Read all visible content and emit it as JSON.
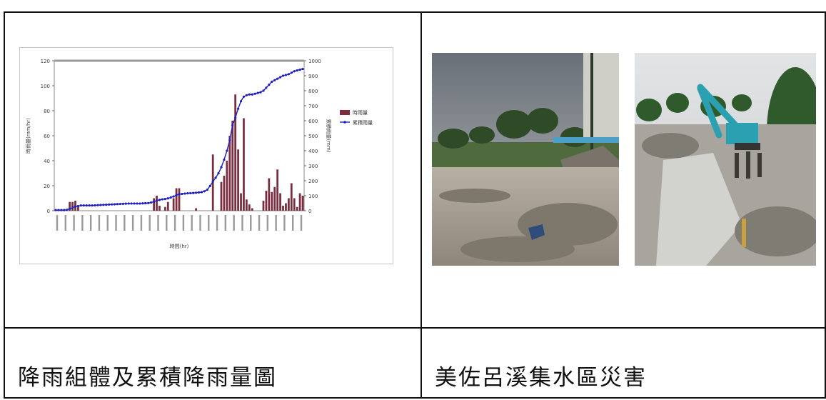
{
  "caption_left": "降雨組體及累積降雨量圖",
  "caption_right": "美佐呂溪集水區災害",
  "chart_data": {
    "type": "bar",
    "title": "",
    "xlabel": "時間(hr)",
    "ylabel": "時雨量(mm/hr)",
    "y2label": "累積雨量(mm)",
    "ylim": [
      0,
      120
    ],
    "y2lim": [
      0,
      1000
    ],
    "yticks": [
      0,
      20,
      40,
      60,
      80,
      100,
      120
    ],
    "y2ticks": [
      0,
      100,
      200,
      300,
      400,
      500,
      600,
      700,
      800,
      900,
      1000
    ],
    "legend_position": "right",
    "series": [
      {
        "name": "時雨量",
        "kind": "bar",
        "axis": "left",
        "color": "#7b2c3f",
        "values": [
          0,
          0,
          0,
          0,
          0,
          7,
          7,
          8,
          3,
          0,
          0,
          0,
          0,
          0,
          0,
          0,
          0,
          0,
          0,
          0,
          0,
          0,
          0,
          0,
          0,
          0,
          0,
          0,
          0,
          0,
          0,
          0,
          0,
          0,
          0,
          10,
          12,
          4,
          0,
          3,
          7,
          0,
          10,
          18,
          18,
          0,
          0,
          0,
          0,
          0,
          2,
          0,
          0,
          0,
          0,
          0,
          45,
          0,
          0,
          23,
          28,
          40,
          60,
          72,
          93,
          49,
          14,
          74,
          9,
          5,
          2,
          0,
          0,
          0,
          8,
          16,
          26,
          15,
          19,
          33,
          14,
          4,
          6,
          10,
          22,
          10,
          3,
          14,
          12
        ]
      },
      {
        "name": "累積雨量",
        "kind": "line",
        "axis": "right",
        "color": "#1f1fbf",
        "values": [
          4,
          4,
          4,
          4,
          6,
          13,
          20,
          28,
          31,
          35,
          35,
          35,
          35,
          35,
          36,
          37,
          38,
          39,
          40,
          41,
          42,
          43,
          44,
          45,
          46,
          47,
          48,
          48,
          48,
          48,
          48,
          49,
          50,
          51,
          55,
          60,
          68,
          72,
          76,
          78,
          82,
          88,
          95,
          104,
          110,
          112,
          114,
          116,
          117,
          118,
          120,
          122,
          124,
          130,
          140,
          165,
          195,
          220,
          250,
          290,
          340,
          400,
          470,
          570,
          620,
          680,
          730,
          760,
          770,
          775,
          775,
          780,
          785,
          790,
          800,
          820,
          840,
          860,
          870,
          880,
          890,
          900,
          905,
          910,
          920,
          930,
          935,
          940,
          945
        ]
      }
    ]
  }
}
